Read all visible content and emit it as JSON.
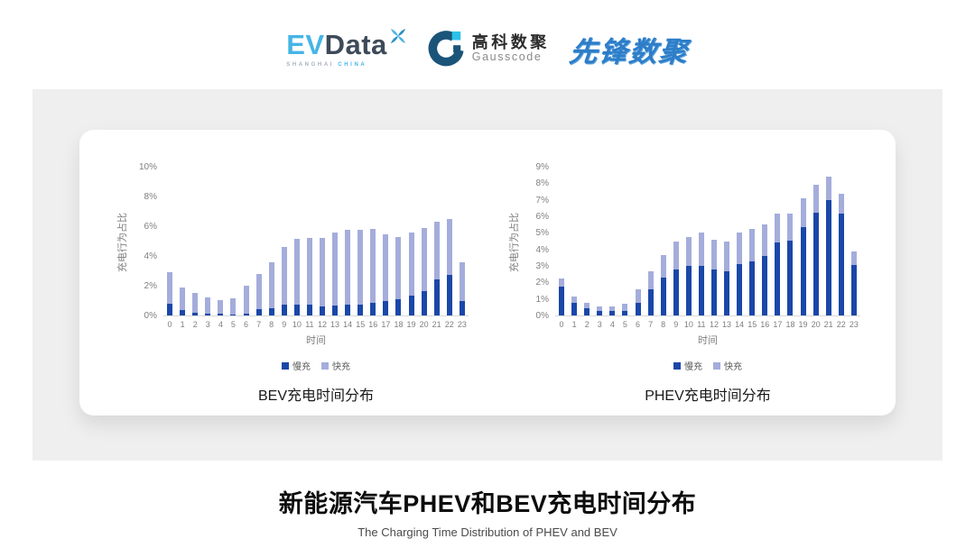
{
  "logos": {
    "evdata": {
      "ev": "EV",
      "data": "Data",
      "sub_left": "SHANGHAI",
      "sub_right": "CHINA"
    },
    "gausscode": {
      "cn": "高科数聚",
      "en": "Gausscode"
    },
    "pioneer": {
      "cn": "先锋数聚"
    }
  },
  "colors": {
    "slow_charge": "#1A47A8",
    "fast_charge": "#A4ADDB",
    "axis_line": "#d9d9d9",
    "tick_text": "#7f7f7f"
  },
  "chart_data": [
    {
      "type": "bar",
      "stacked": true,
      "title": "BEV充电时间分布",
      "xlabel": "时间",
      "ylabel": "充电行为占比",
      "ylim": [
        0,
        10
      ],
      "yticks": [
        "0%",
        "2%",
        "4%",
        "6%",
        "8%",
        "10%"
      ],
      "ytick_values": [
        0,
        2,
        4,
        6,
        8,
        10
      ],
      "grid": false,
      "legend_position": "bottom-center",
      "categories": [
        "0",
        "1",
        "2",
        "3",
        "4",
        "5",
        "6",
        "7",
        "8",
        "9",
        "10",
        "11",
        "12",
        "13",
        "14",
        "15",
        "16",
        "17",
        "18",
        "19",
        "20",
        "21",
        "22",
        "23"
      ],
      "series": [
        {
          "name": "慢充",
          "color": "#1A47A8",
          "values": [
            0.8,
            0.35,
            0.2,
            0.12,
            0.1,
            0.07,
            0.15,
            0.4,
            0.5,
            0.7,
            0.7,
            0.72,
            0.6,
            0.65,
            0.7,
            0.7,
            0.85,
            1.0,
            1.1,
            1.35,
            1.65,
            2.4,
            2.75,
            1.0
          ]
        },
        {
          "name": "快充",
          "color": "#A4ADDB",
          "values": [
            2.1,
            1.55,
            1.3,
            1.08,
            0.95,
            1.08,
            1.85,
            2.4,
            3.1,
            3.9,
            4.45,
            4.48,
            4.6,
            4.95,
            5.05,
            5.05,
            4.95,
            4.45,
            4.2,
            4.2,
            4.25,
            3.9,
            3.75,
            2.55
          ]
        }
      ]
    },
    {
      "type": "bar",
      "stacked": true,
      "title": "PHEV充电时间分布",
      "xlabel": "时间",
      "ylabel": "充电行为占比",
      "ylim": [
        0,
        9
      ],
      "yticks": [
        "0%",
        "1%",
        "2%",
        "3%",
        "4%",
        "5%",
        "6%",
        "7%",
        "8%",
        "9%"
      ],
      "ytick_values": [
        0,
        1,
        2,
        3,
        4,
        5,
        6,
        7,
        8,
        9
      ],
      "grid": false,
      "legend_position": "bottom-center",
      "categories": [
        "0",
        "1",
        "2",
        "3",
        "4",
        "5",
        "6",
        "7",
        "8",
        "9",
        "10",
        "11",
        "12",
        "13",
        "14",
        "15",
        "16",
        "17",
        "18",
        "19",
        "20",
        "21",
        "22",
        "23"
      ],
      "series": [
        {
          "name": "慢充",
          "color": "#1A47A8",
          "values": [
            1.75,
            0.75,
            0.45,
            0.25,
            0.25,
            0.3,
            0.75,
            1.6,
            2.3,
            2.8,
            3.0,
            3.0,
            2.8,
            2.65,
            3.1,
            3.3,
            3.6,
            4.4,
            4.55,
            5.35,
            6.2,
            7.0,
            6.15,
            3.05
          ]
        },
        {
          "name": "快充",
          "color": "#A4ADDB",
          "values": [
            0.5,
            0.4,
            0.3,
            0.3,
            0.3,
            0.4,
            0.85,
            1.1,
            1.35,
            1.7,
            1.75,
            2.0,
            1.8,
            1.85,
            1.9,
            1.95,
            1.9,
            1.75,
            1.6,
            1.75,
            1.7,
            1.4,
            1.2,
            0.8
          ]
        }
      ]
    }
  ],
  "footer": {
    "title": "新能源汽车PHEV和BEV充电时间分布",
    "subtitle": "The Charging Time Distribution of PHEV and BEV"
  }
}
